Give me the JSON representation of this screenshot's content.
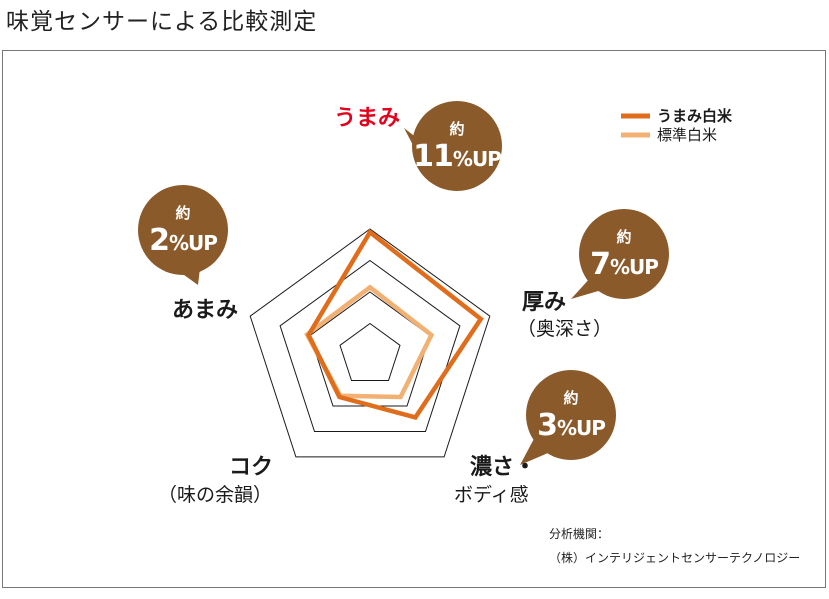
{
  "title": "味覚センサーによる比較測定",
  "chart_data": {
    "type": "radar",
    "axes": [
      {
        "label": "うまみ",
        "sublabel": ""
      },
      {
        "label": "厚み",
        "sublabel": "（奥深さ）"
      },
      {
        "label": "濃さ・",
        "sublabel": "ボディ感"
      },
      {
        "label": "コク",
        "sublabel": "（味の余韻）"
      },
      {
        "label": "あまみ",
        "sublabel": ""
      }
    ],
    "highlight_axis_color": "#e3001b",
    "range": [
      0,
      4
    ],
    "gridlines": [
      1,
      2,
      3,
      4
    ],
    "series": [
      {
        "name": "うまみ白米",
        "color": "#e06d1c",
        "values": [
          3.9,
          3.7,
          2.45,
          1.65,
          2.05
        ]
      },
      {
        "name": "標準白米",
        "color": "#f2b072",
        "values": [
          2.15,
          2.05,
          1.65,
          1.6,
          2.1
        ]
      }
    ],
    "legend_position": "top-right",
    "bubbles": [
      {
        "prefix": "約",
        "value": "11",
        "suffix": "%UP",
        "color": "#8b5a2b"
      },
      {
        "prefix": "約",
        "value": "7",
        "suffix": "%UP",
        "color": "#8b5a2b"
      },
      {
        "prefix": "約",
        "value": "3",
        "suffix": "%UP",
        "color": "#8b5a2b"
      },
      {
        "prefix": "約",
        "value": "2",
        "suffix": "%UP",
        "color": "#8b5a2b"
      }
    ]
  },
  "source": {
    "label": "分析機関：",
    "name": "（株）インテリジェントセンサーテクノロジー"
  }
}
